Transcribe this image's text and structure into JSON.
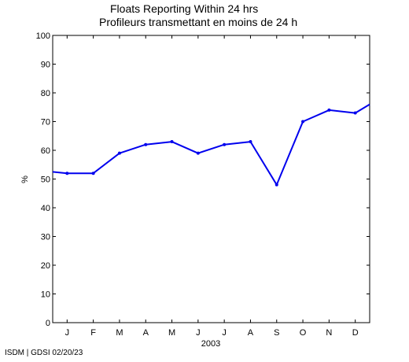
{
  "footer": "ISDM | GDSI 02/20/23",
  "chart_data": {
    "type": "line",
    "title_en": "Floats Reporting Within 24 hrs",
    "title_fr": "Profileurs transmettant en moins de 24 h",
    "ylabel": "%",
    "xlabel": "2003",
    "ylim": [
      0,
      100
    ],
    "yticks": [
      0,
      10,
      20,
      30,
      40,
      50,
      60,
      70,
      80,
      90,
      100
    ],
    "xlim": [
      -0.55,
      11.55
    ],
    "categories": [
      "J",
      "F",
      "M",
      "A",
      "M",
      "J",
      "J",
      "A",
      "S",
      "O",
      "N",
      "D"
    ],
    "grid": false,
    "line_color": "#0000ee",
    "series": [
      {
        "x": [
          -0.55,
          0,
          1,
          2,
          3,
          4,
          5,
          6,
          7,
          8,
          9,
          10,
          11,
          11.55
        ],
        "values": [
          52.5,
          52,
          52,
          59,
          62,
          63,
          59,
          62,
          63,
          48,
          70,
          74,
          73,
          76
        ]
      }
    ]
  }
}
